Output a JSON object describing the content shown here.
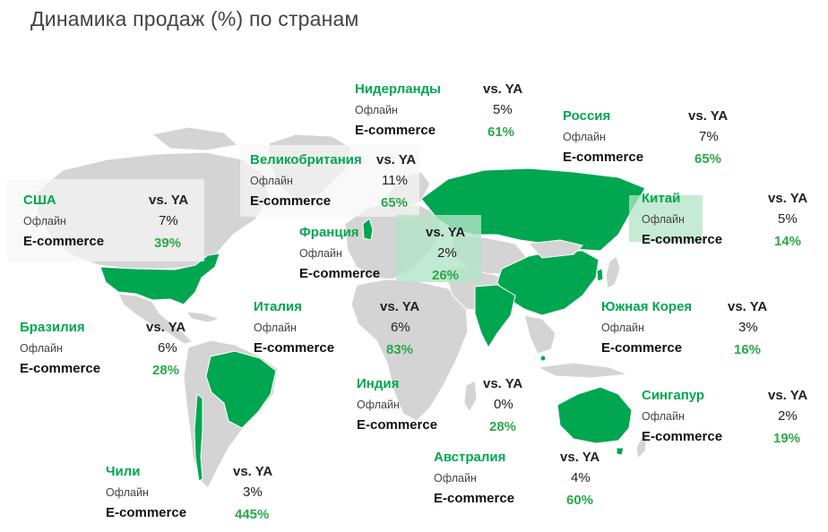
{
  "title": "Динамика продаж (%) по странам",
  "colors": {
    "highlight": "#00a650",
    "highlight_light": "#b3e4c6",
    "land": "#d4d4d4",
    "value": "#2aa84a"
  },
  "labels": {
    "vs": "vs. YA",
    "offline": "Офлайн",
    "ecommerce": "E-commerce"
  },
  "countries": {
    "netherlands": {
      "name": "Нидерланды",
      "offline": "5%",
      "ecommerce": "61%"
    },
    "russia": {
      "name": "Россия",
      "offline": "7%",
      "ecommerce": "65%"
    },
    "uk": {
      "name": "Великобритания",
      "offline": "11%",
      "ecommerce": "65%"
    },
    "usa": {
      "name": "США",
      "offline": "7%",
      "ecommerce": "39%"
    },
    "china": {
      "name": "Китай",
      "offline": "5%",
      "ecommerce": "14%"
    },
    "france": {
      "name": "Франция",
      "offline": "2%",
      "ecommerce": "26%"
    },
    "italy": {
      "name": "Италия",
      "offline": "6%",
      "ecommerce": "83%"
    },
    "south_korea": {
      "name": "Южная Корея",
      "offline": "3%",
      "ecommerce": "16%"
    },
    "brazil": {
      "name": "Бразилия",
      "offline": "6%",
      "ecommerce": "28%"
    },
    "india": {
      "name": "Индия",
      "offline": "0%",
      "ecommerce": "28%"
    },
    "singapore": {
      "name": "Сингапур",
      "offline": "2%",
      "ecommerce": "19%"
    },
    "australia": {
      "name": "Австралия",
      "offline": "4%",
      "ecommerce": "60%"
    },
    "chile": {
      "name": "Чили",
      "offline": "3%",
      "ecommerce": "445%"
    }
  }
}
